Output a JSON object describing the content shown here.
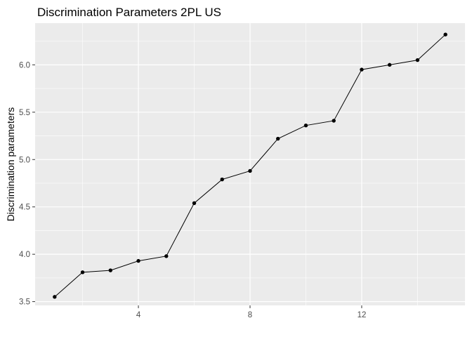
{
  "chart_data": {
    "type": "line",
    "title": "Discrimination Parameters 2PL US",
    "xlabel": "",
    "ylabel": "Discrimination parameters",
    "x": [
      1,
      2,
      3,
      4,
      5,
      6,
      7,
      8,
      9,
      10,
      11,
      12,
      13,
      14,
      15
    ],
    "series": [
      {
        "values": [
          3.55,
          3.81,
          3.83,
          3.93,
          3.98,
          4.54,
          4.79,
          4.88,
          5.22,
          5.36,
          5.41,
          5.95,
          6.0,
          6.05,
          6.32
        ]
      }
    ],
    "xticks": [
      4,
      8,
      12
    ],
    "yticks": [
      3.5,
      4.0,
      4.5,
      5.0,
      5.5,
      6.0
    ],
    "ytick_labels": [
      "3.5",
      "4.0",
      "4.5",
      "5.0",
      "5.5",
      "6.0"
    ],
    "xlim": [
      0.3,
      15.7
    ],
    "ylim": [
      3.46,
      6.44
    ],
    "grid": true,
    "legend": "none",
    "colors": {
      "panel": "#ebebeb",
      "grid": "#ffffff",
      "line": "#000000",
      "point": "#000000",
      "tick_text": "#4d4d4d"
    }
  }
}
